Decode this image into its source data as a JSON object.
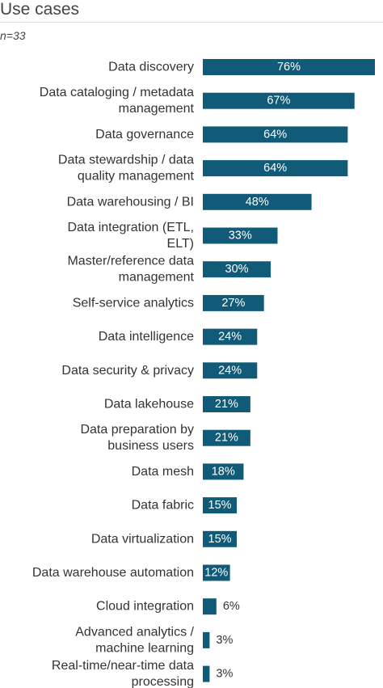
{
  "title": "Use cases",
  "subtitle": "n=33",
  "bar_color": "#115b78",
  "chart_data": {
    "type": "bar",
    "orientation": "horizontal",
    "title": "Use cases",
    "subtitle": "n=33",
    "value_suffix": "%",
    "xlim": [
      0,
      76
    ],
    "categories": [
      "Data discovery",
      "Data cataloging / metadata management",
      "Data governance",
      "Data stewardship / data quality management",
      "Data warehousing / BI",
      "Data integration (ETL, ELT)",
      "Master/reference data management",
      "Self-service analytics",
      "Data intelligence",
      "Data security & privacy",
      "Data lakehouse",
      "Data preparation by business users",
      "Data mesh",
      "Data fabric",
      "Data virtualization",
      "Data warehouse automation",
      "Cloud integration",
      "Advanced analytics / machine learning",
      "Real-time/near-time data processing"
    ],
    "category_lines": [
      [
        "Data discovery"
      ],
      [
        "Data cataloging / metadata",
        "management"
      ],
      [
        "Data governance"
      ],
      [
        "Data stewardship / data",
        "quality management"
      ],
      [
        "Data warehousing / BI"
      ],
      [
        "Data integration (ETL,",
        "ELT)"
      ],
      [
        "Master/reference data",
        "management"
      ],
      [
        "Self-service analytics"
      ],
      [
        "Data intelligence"
      ],
      [
        "Data security & privacy"
      ],
      [
        "Data lakehouse"
      ],
      [
        "Data preparation by",
        "business users"
      ],
      [
        "Data mesh"
      ],
      [
        "Data fabric"
      ],
      [
        "Data virtualization"
      ],
      [
        "Data warehouse automation"
      ],
      [
        "Cloud integration"
      ],
      [
        "Advanced analytics /",
        "machine learning"
      ],
      [
        "Real-time/near-time data",
        "processing"
      ]
    ],
    "values": [
      76,
      67,
      64,
      64,
      48,
      33,
      30,
      27,
      24,
      24,
      21,
      21,
      18,
      15,
      15,
      12,
      6,
      3,
      3
    ],
    "value_labels": [
      "76%",
      "67%",
      "64%",
      "64%",
      "48%",
      "33%",
      "30%",
      "27%",
      "24%",
      "24%",
      "21%",
      "21%",
      "18%",
      "15%",
      "15%",
      "12%",
      "6%",
      "3%",
      "3%"
    ],
    "grid": false,
    "legend": "none"
  }
}
